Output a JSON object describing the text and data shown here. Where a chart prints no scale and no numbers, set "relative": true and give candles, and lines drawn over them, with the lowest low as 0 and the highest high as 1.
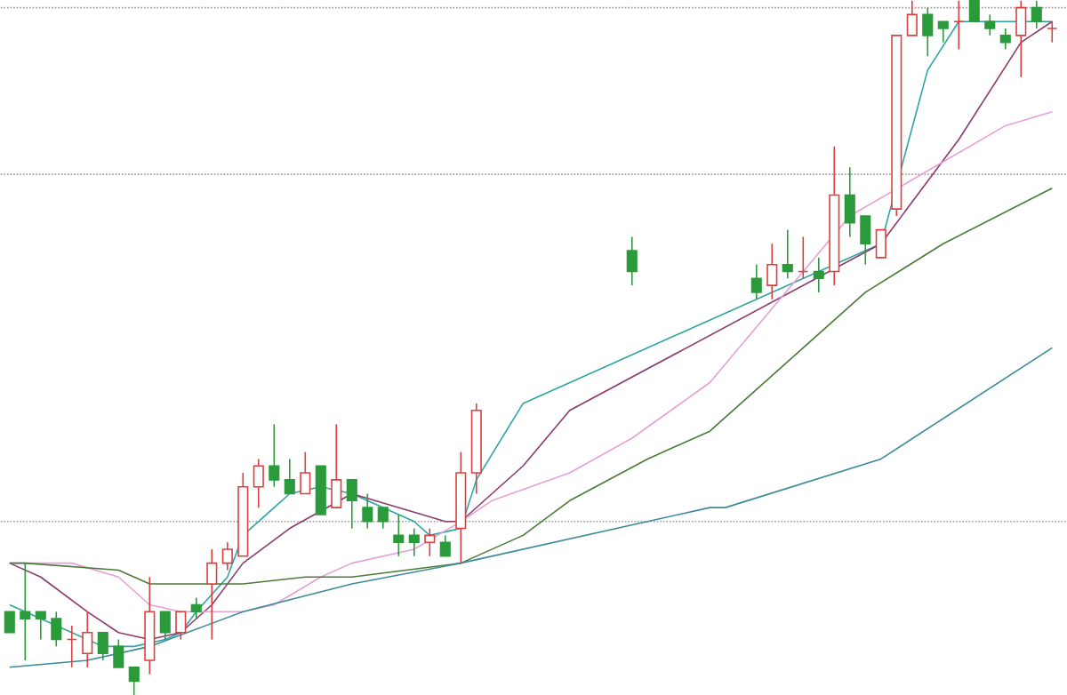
{
  "chart_data": {
    "type": "candlestick",
    "relative": true,
    "categories": [
      null,
      null,
      null,
      null,
      null,
      null,
      null,
      null,
      null,
      null,
      null,
      null,
      null,
      null,
      null,
      null,
      null,
      null,
      null,
      null,
      null,
      null,
      null,
      null,
      null,
      null,
      null,
      null,
      null,
      null,
      null,
      null,
      null,
      null,
      null,
      null,
      null,
      null,
      null,
      null,
      null,
      null,
      null,
      null,
      null,
      null,
      null,
      null,
      null,
      null,
      null,
      null,
      null,
      null,
      null,
      null,
      null,
      null,
      null,
      null,
      null,
      null,
      null,
      null,
      null,
      null,
      null,
      null
    ],
    "ohlc": [
      [
        0.12,
        0.12,
        0.09,
        0.09
      ],
      [
        0.12,
        0.19,
        0.05,
        0.11
      ],
      [
        0.12,
        0.12,
        0.08,
        0.11
      ],
      [
        0.11,
        0.12,
        0.07,
        0.08
      ],
      [
        0.08,
        0.1,
        0.04,
        0.08
      ],
      [
        0.06,
        0.12,
        0.04,
        0.09
      ],
      [
        0.09,
        0.09,
        0.05,
        0.06
      ],
      [
        0.07,
        0.08,
        0.04,
        0.04
      ],
      [
        0.04,
        0.04,
        0,
        0.02
      ],
      [
        0.05,
        0.17,
        0.03,
        0.12
      ],
      [
        0.12,
        0.12,
        0.08,
        0.09
      ],
      [
        0.09,
        0.12,
        0.08,
        0.12
      ],
      [
        0.13,
        0.14,
        0.11,
        0.12
      ],
      [
        0.16,
        0.21,
        0.08,
        0.19
      ],
      [
        0.19,
        0.22,
        0.18,
        0.21
      ],
      [
        0.2,
        0.32,
        0.2,
        0.3
      ],
      [
        0.3,
        0.34,
        0.27,
        0.33
      ],
      [
        0.33,
        0.39,
        0.3,
        0.31
      ],
      [
        0.31,
        0.34,
        0.29,
        0.29
      ],
      [
        0.29,
        0.35,
        0.29,
        0.32
      ],
      [
        0.33,
        0.33,
        0.26,
        0.26
      ],
      [
        0.27,
        0.39,
        0.27,
        0.31
      ],
      [
        0.31,
        0.31,
        0.24,
        0.28
      ],
      [
        0.27,
        0.29,
        0.24,
        0.25
      ],
      [
        0.27,
        0.27,
        0.24,
        0.25
      ],
      [
        0.23,
        0.26,
        0.2,
        0.22
      ],
      [
        0.23,
        0.24,
        0.2,
        0.22
      ],
      [
        0.22,
        0.24,
        0.2,
        0.23
      ],
      [
        0.22,
        0.23,
        0.2,
        0.2
      ],
      [
        0.24,
        0.35,
        0.19,
        0.32
      ],
      [
        0.32,
        0.42,
        0.29,
        0.41
      ],
      null,
      null,
      null,
      null,
      null,
      null,
      null,
      null,
      null,
      [
        0.64,
        0.66,
        0.59,
        0.61
      ],
      null,
      null,
      null,
      null,
      null,
      null,
      null,
      [
        0.6,
        0.62,
        0.57,
        0.58
      ],
      [
        0.59,
        0.65,
        0.57,
        0.62
      ],
      [
        0.62,
        0.67,
        0.6,
        0.61
      ],
      [
        0.61,
        0.66,
        0.6,
        0.61
      ],
      [
        0.61,
        0.63,
        0.58,
        0.6
      ],
      [
        0.61,
        0.79,
        0.59,
        0.72
      ],
      [
        0.72,
        0.76,
        0.66,
        0.68
      ],
      [
        0.69,
        0.69,
        0.62,
        0.65
      ],
      [
        0.63,
        0.67,
        0.63,
        0.67
      ],
      [
        0.7,
        0.95,
        0.69,
        0.95
      ],
      [
        0.95,
        1,
        0.95,
        0.98
      ],
      [
        0.98,
        0.99,
        0.92,
        0.95
      ],
      [
        0.97,
        0.97,
        0.94,
        0.96
      ],
      [
        0.97,
        1,
        0.93,
        0.97
      ],
      [
        1,
        1,
        0.97,
        0.97
      ],
      [
        0.97,
        0.98,
        0.95,
        0.96
      ],
      [
        0.95,
        0.96,
        0.93,
        0.94
      ],
      [
        0.95,
        1,
        0.89,
        0.99
      ],
      [
        0.99,
        1,
        0.96,
        0.97
      ],
      [
        0.96,
        0.97,
        0.94,
        0.96
      ]
    ],
    "series": [
      {
        "type": "line",
        "color": "#2fa4a4",
        "values": [
          0.13,
          null,
          null,
          null,
          0.09,
          null,
          0.07,
          null,
          0.07,
          null,
          0.08,
          0.09,
          0.12,
          null,
          0.17,
          0.23,
          null,
          0.27,
          0.29,
          null,
          0.3,
          null,
          0.29,
          null,
          0.27,
          null,
          0.25,
          0.23,
          null,
          0.24,
          0.31,
          null,
          null,
          0.42,
          null,
          null,
          null,
          null,
          null,
          null,
          null,
          null,
          null,
          null,
          null,
          null,
          null,
          null,
          null,
          null,
          null,
          null,
          null,
          null,
          null,
          null,
          0.65,
          null,
          null,
          0.9,
          null,
          0.97,
          null,
          null,
          null,
          null,
          null,
          0.97
        ]
      },
      {
        "type": "line",
        "color": "#8b3a6b",
        "values": [
          0.19,
          null,
          0.17,
          null,
          null,
          0.12,
          null,
          0.09,
          null,
          0.08,
          null,
          0.09,
          null,
          0.13,
          null,
          0.19,
          null,
          null,
          0.24,
          null,
          null,
          null,
          0.29,
          null,
          null,
          null,
          null,
          null,
          0.25,
          0.25,
          null,
          null,
          null,
          0.33,
          null,
          null,
          0.41,
          null,
          null,
          null,
          null,
          null,
          null,
          null,
          null,
          null,
          null,
          null,
          null,
          null,
          null,
          null,
          null,
          null,
          null,
          null,
          0.65,
          null,
          null,
          null,
          null,
          0.8,
          null,
          null,
          null,
          0.94,
          null,
          0.97
        ]
      },
      {
        "type": "line",
        "color": "#e6a0d8",
        "values": [
          0.19,
          null,
          null,
          null,
          0.19,
          null,
          null,
          0.17,
          null,
          0.13,
          null,
          0.12,
          null,
          null,
          null,
          0.12,
          null,
          0.13,
          null,
          null,
          0.17,
          null,
          0.19,
          null,
          null,
          null,
          0.21,
          null,
          null,
          0.25,
          null,
          0.28,
          null,
          null,
          null,
          null,
          0.32,
          null,
          null,
          null,
          0.37,
          null,
          null,
          null,
          null,
          0.45,
          null,
          null,
          null,
          null,
          null,
          null,
          null,
          null,
          0.69,
          null,
          null,
          null,
          null,
          null,
          null,
          null,
          null,
          null,
          0.82,
          null,
          null,
          0.84
        ]
      },
      {
        "type": "line",
        "color": "#4a7a3a",
        "values": [
          0.19,
          0.19,
          null,
          null,
          null,
          null,
          null,
          0.18,
          null,
          0.16,
          null,
          null,
          null,
          null,
          null,
          0.16,
          null,
          null,
          null,
          0.17,
          null,
          null,
          0.17,
          null,
          null,
          null,
          null,
          null,
          null,
          0.19,
          null,
          null,
          null,
          0.23,
          null,
          null,
          0.28,
          null,
          null,
          null,
          null,
          0.34,
          null,
          null,
          null,
          0.38,
          null,
          null,
          null,
          null,
          null,
          null,
          null,
          null,
          null,
          0.58,
          null,
          null,
          null,
          null,
          0.65,
          null,
          null,
          null,
          null,
          null,
          null,
          0.73
        ]
      },
      {
        "type": "line",
        "color": "#3a8a9a",
        "values": [
          0.04,
          null,
          null,
          null,
          null,
          0.05,
          null,
          null,
          null,
          0.07,
          null,
          null,
          null,
          null,
          null,
          0.12,
          null,
          null,
          null,
          null,
          null,
          null,
          0.16,
          null,
          null,
          null,
          null,
          null,
          null,
          0.19,
          null,
          null,
          null,
          null,
          null,
          null,
          null,
          null,
          null,
          null,
          null,
          null,
          null,
          null,
          null,
          0.27,
          0.27,
          null,
          null,
          null,
          null,
          null,
          null,
          null,
          null,
          null,
          0.34,
          null,
          null,
          null,
          null,
          null,
          null,
          null,
          null,
          null,
          null,
          0.5
        ]
      }
    ],
    "ref_lines": [
      {
        "axis": "y",
        "value": 0.99,
        "color": "#999999",
        "line_style": "dotted"
      },
      {
        "axis": "y",
        "value": 0.75,
        "color": "#999999",
        "line_style": "dotted"
      },
      {
        "axis": "y",
        "value": 0.25,
        "color": "#999999",
        "line_style": "dotted"
      }
    ]
  }
}
